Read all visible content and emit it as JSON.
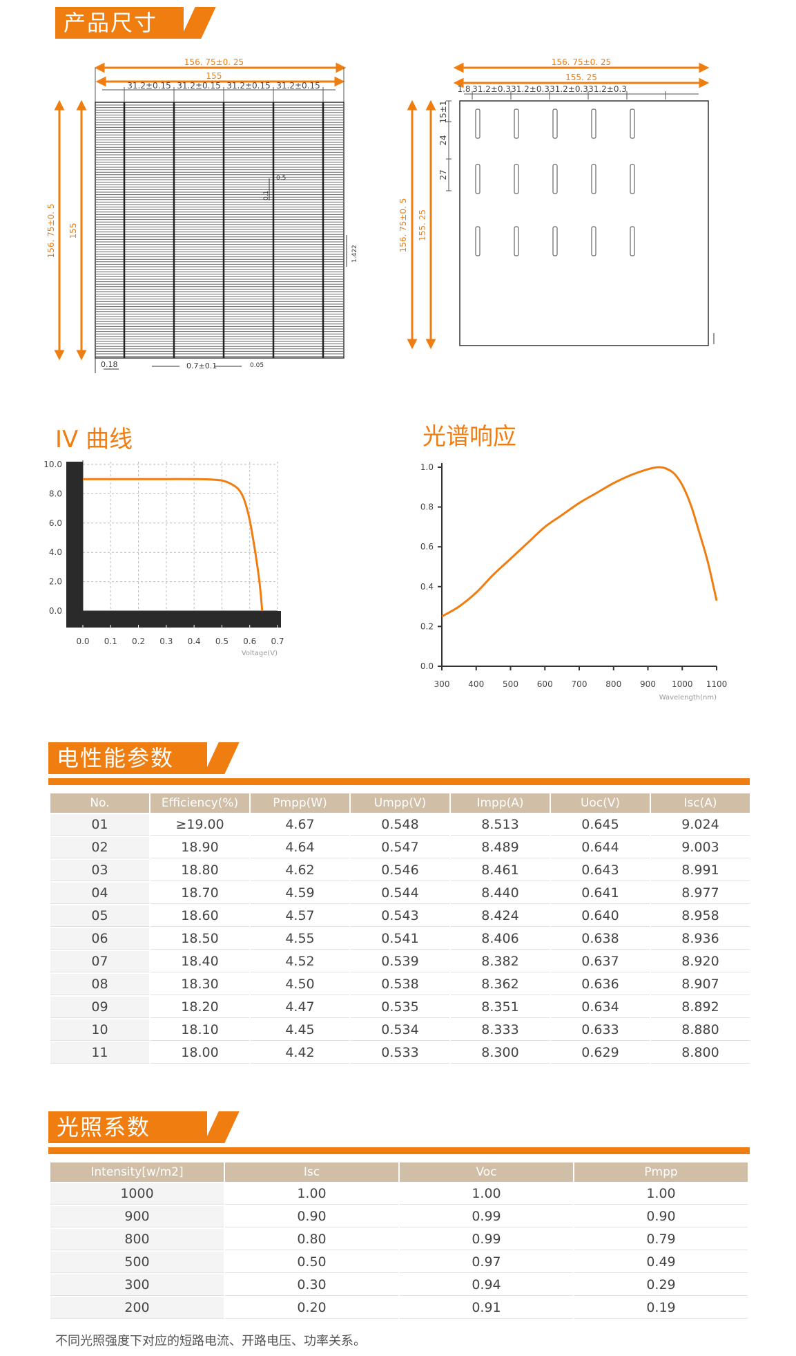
{
  "sections": {
    "dimensions_title": "产品尺寸",
    "electrical_title": "电性能参数",
    "irradiance_title": "光照系数"
  },
  "front_drawing": {
    "width_total": "156. 75±0. 25",
    "width_inner": "155",
    "pitch_labels": [
      "31.2±0.15",
      "31.2±0.15",
      "31.2±0.15",
      "31.2±0.15"
    ],
    "height_total": "156. 75±0. 5",
    "height_inner": "155",
    "small_labels": [
      "0.5",
      "0.1",
      "1.422",
      "0.18",
      "0.7±0.1",
      "0.05"
    ]
  },
  "back_drawing": {
    "width_total": "156. 75±0. 25",
    "width_inner": "155. 25",
    "edge_label": "1.8",
    "pitch_labels": [
      "31.2±0.3",
      "31.2±0.3",
      "31.2±0.3",
      "31.2±0.3"
    ],
    "height_total": "156. 75±0. 5",
    "height_inner": "155. 25",
    "vertical_labels": [
      "15±1",
      "24",
      "27"
    ]
  },
  "chart_data": [
    {
      "type": "line",
      "title": "IV 曲线",
      "xlabel": "Voltage(V)",
      "ylabel": "",
      "xlim": [
        0,
        0.7
      ],
      "ylim": [
        0,
        10
      ],
      "x_ticks": [
        "0.0",
        "0.1",
        "0.2",
        "0.3",
        "0.4",
        "0.5",
        "0.6",
        "0.7"
      ],
      "y_ticks": [
        "0.0",
        "2.0",
        "4.0",
        "6.0",
        "8.0",
        "10.0"
      ],
      "grid": true,
      "color": "#f07d10",
      "series": [
        {
          "x": [
            0.0,
            0.1,
            0.2,
            0.3,
            0.4,
            0.45,
            0.5,
            0.53,
            0.56,
            0.58,
            0.6,
            0.62,
            0.635,
            0.645
          ],
          "y": [
            9.0,
            9.0,
            9.0,
            9.0,
            9.0,
            8.98,
            8.9,
            8.7,
            8.3,
            7.6,
            6.2,
            4.0,
            2.0,
            0.0
          ]
        }
      ]
    },
    {
      "type": "line",
      "title": "光谱响应",
      "xlabel": "Wavelength(nm)",
      "ylabel": "",
      "xlim": [
        300,
        1100
      ],
      "ylim": [
        0,
        1.0
      ],
      "x_ticks": [
        "300",
        "400",
        "500",
        "600",
        "700",
        "800",
        "900",
        "1000",
        "1100"
      ],
      "y_ticks": [
        "0.0",
        "0.2",
        "0.4",
        "0.6",
        "0.8",
        "1.0"
      ],
      "grid": false,
      "color": "#f07d10",
      "series": [
        {
          "x": [
            300,
            350,
            400,
            450,
            500,
            550,
            600,
            650,
            700,
            750,
            800,
            850,
            900,
            930,
            950,
            975,
            1000,
            1025,
            1050,
            1075,
            1100
          ],
          "y": [
            0.25,
            0.3,
            0.37,
            0.46,
            0.54,
            0.62,
            0.7,
            0.76,
            0.82,
            0.87,
            0.92,
            0.96,
            0.99,
            1.0,
            0.995,
            0.97,
            0.91,
            0.81,
            0.67,
            0.52,
            0.33
          ]
        }
      ]
    }
  ],
  "electrical_table": {
    "headers": [
      "No.",
      "Efficiency(%)",
      "Pmpp(W)",
      "Umpp(V)",
      "Impp(A)",
      "Uoc(V)",
      "Isc(A)"
    ],
    "rows": [
      [
        "01",
        "≥19.00",
        "4.67",
        "0.548",
        "8.513",
        "0.645",
        "9.024"
      ],
      [
        "02",
        "18.90",
        "4.64",
        "0.547",
        "8.489",
        "0.644",
        "9.003"
      ],
      [
        "03",
        "18.80",
        "4.62",
        "0.546",
        "8.461",
        "0.643",
        "8.991"
      ],
      [
        "04",
        "18.70",
        "4.59",
        "0.544",
        "8.440",
        "0.641",
        "8.977"
      ],
      [
        "05",
        "18.60",
        "4.57",
        "0.543",
        "8.424",
        "0.640",
        "8.958"
      ],
      [
        "06",
        "18.50",
        "4.55",
        "0.541",
        "8.406",
        "0.638",
        "8.936"
      ],
      [
        "07",
        "18.40",
        "4.52",
        "0.539",
        "8.382",
        "0.637",
        "8.920"
      ],
      [
        "08",
        "18.30",
        "4.50",
        "0.538",
        "8.362",
        "0.636",
        "8.907"
      ],
      [
        "09",
        "18.20",
        "4.47",
        "0.535",
        "8.351",
        "0.634",
        "8.892"
      ],
      [
        "10",
        "18.10",
        "4.45",
        "0.534",
        "8.333",
        "0.633",
        "8.880"
      ],
      [
        "11",
        "18.00",
        "4.42",
        "0.533",
        "8.300",
        "0.629",
        "8.800"
      ]
    ]
  },
  "irradiance_table": {
    "headers": [
      "Intensity[w/m2]",
      "Isc",
      "Voc",
      "Pmpp"
    ],
    "rows": [
      [
        "1000",
        "1.00",
        "1.00",
        "1.00"
      ],
      [
        "900",
        "0.90",
        "0.99",
        "0.90"
      ],
      [
        "800",
        "0.80",
        "0.99",
        "0.79"
      ],
      [
        "500",
        "0.50",
        "0.97",
        "0.49"
      ],
      [
        "300",
        "0.30",
        "0.94",
        "0.29"
      ],
      [
        "200",
        "0.20",
        "0.91",
        "0.19"
      ]
    ]
  },
  "note": "不同光照强度下对应的短路电流、开路电压、功率关系。"
}
